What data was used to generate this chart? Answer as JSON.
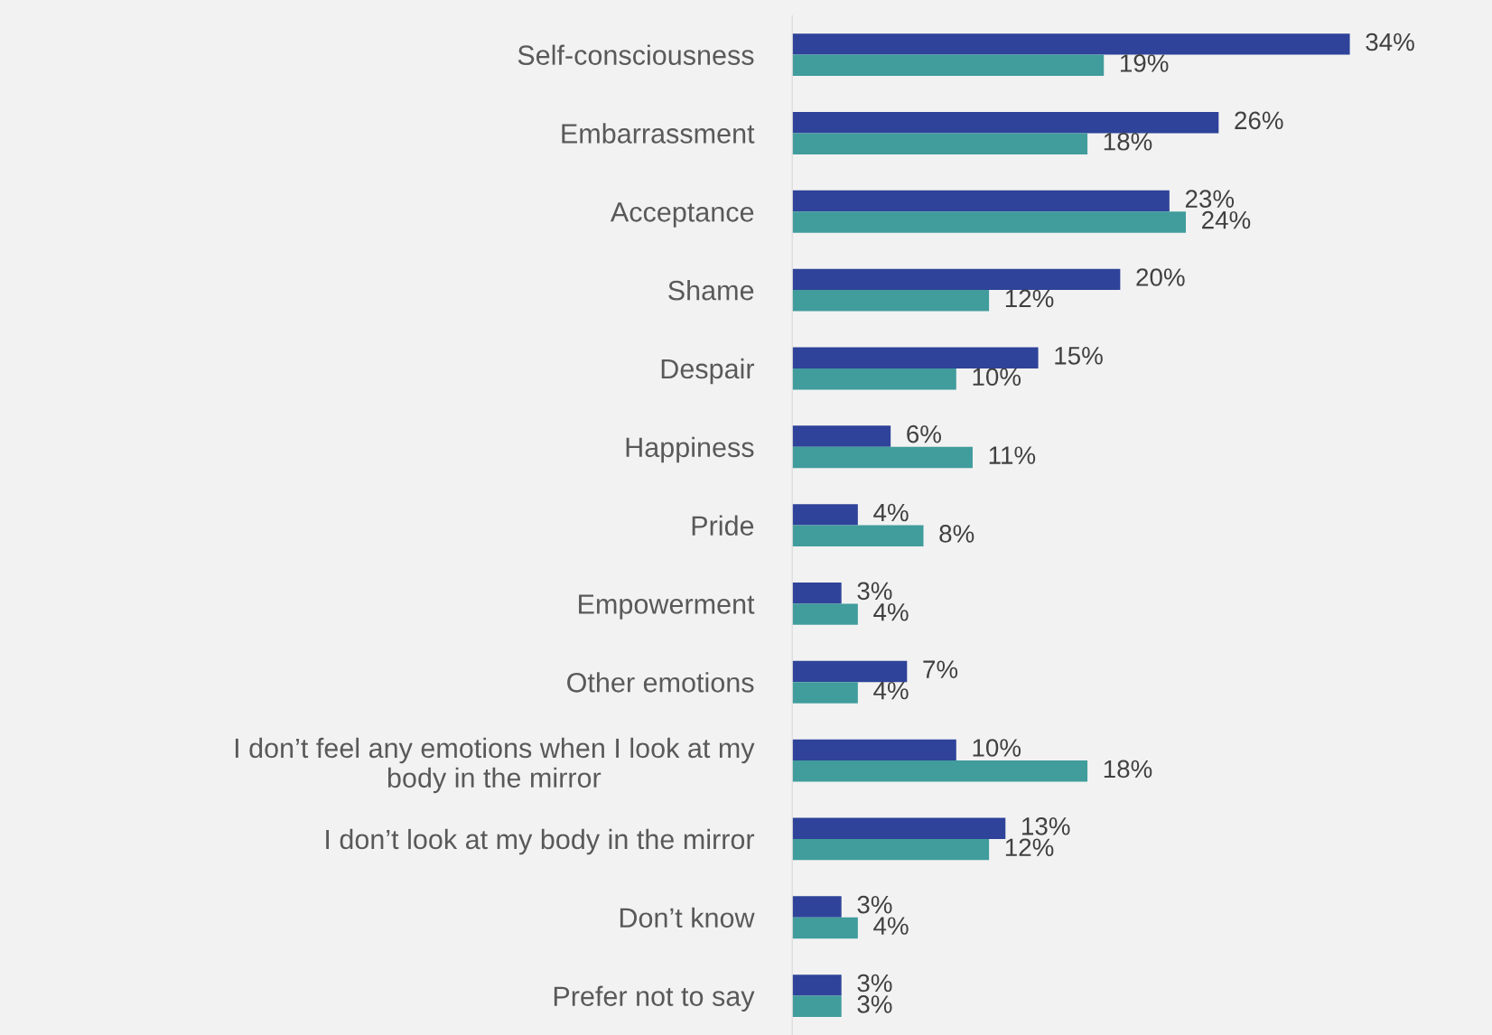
{
  "chart_data": {
    "type": "bar",
    "orientation": "horizontal",
    "categories": [
      "Self-consciousness",
      "Embarrassment",
      "Acceptance",
      "Shame",
      "Despair",
      "Happiness",
      "Pride",
      "Empowerment",
      "Other emotions",
      "I don’t feel any emotions when I look at my\nbody in the mirror",
      "I don’t look at my body in the mirror",
      "Don’t know",
      "Prefer not to say"
    ],
    "series": [
      {
        "color": "#2e4399",
        "values": [
          34,
          26,
          23,
          20,
          15,
          6,
          4,
          3,
          7,
          10,
          13,
          3,
          3
        ],
        "value_labels": [
          "34%",
          "26%",
          "23%",
          "20%",
          "15%",
          "6%",
          "4%",
          "3%",
          "7%",
          "10%",
          "13%",
          "3%",
          "3%"
        ]
      },
      {
        "color": "#419c9c",
        "values": [
          19,
          18,
          24,
          12,
          10,
          11,
          8,
          4,
          4,
          18,
          12,
          4,
          3
        ],
        "value_labels": [
          "19%",
          "18%",
          "24%",
          "12%",
          "10%",
          "11%",
          "8%",
          "4%",
          "4%",
          "18%",
          "12%",
          "4%",
          "3%"
        ]
      }
    ],
    "grid": false,
    "legend": false
  }
}
